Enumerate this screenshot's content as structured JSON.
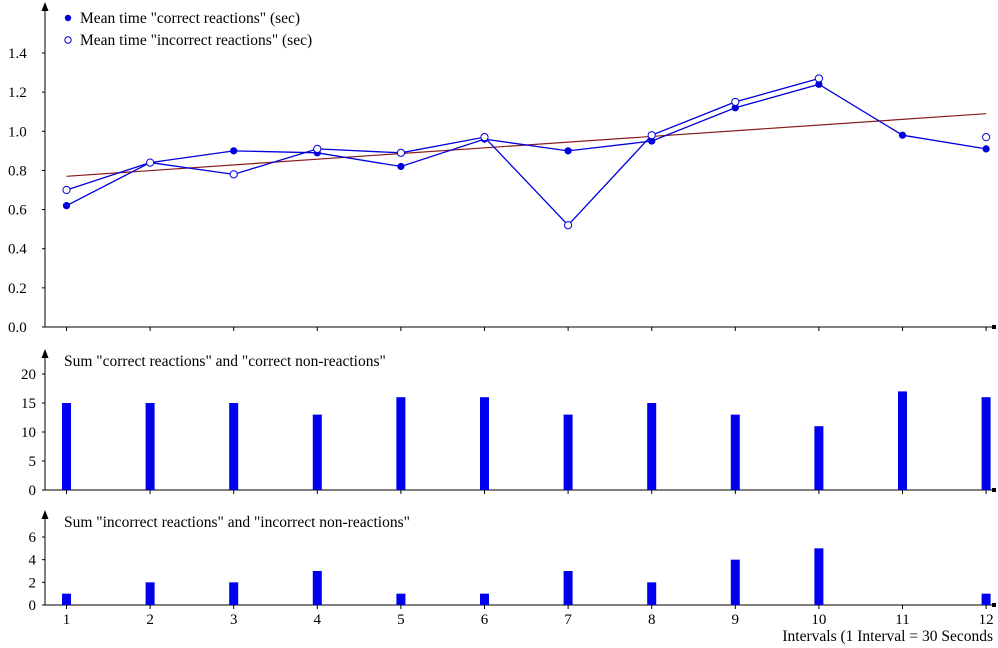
{
  "chart_data": [
    {
      "type": "line",
      "x": [
        1,
        2,
        3,
        4,
        5,
        6,
        7,
        8,
        9,
        10,
        11,
        12
      ],
      "ylim": [
        0.0,
        1.4
      ],
      "yticks": [
        "0.0",
        "0.2",
        "0.4",
        "0.6",
        "0.8",
        "1.0",
        "1.2",
        "1.4"
      ],
      "legend_position": "top-left",
      "series": [
        {
          "name": "Mean time \"correct reactions\" (sec)",
          "marker": "filled-circle",
          "color": "#0000dd",
          "values": [
            0.62,
            0.84,
            0.9,
            0.89,
            0.82,
            0.96,
            0.9,
            0.95,
            1.12,
            1.24,
            0.98,
            0.91
          ]
        },
        {
          "name": "Mean time \"incorrect reactions\" (sec)",
          "marker": "open-circle",
          "color": "#0000dd",
          "values": [
            0.7,
            0.84,
            0.78,
            0.91,
            0.89,
            0.97,
            0.52,
            0.98,
            1.15,
            1.27,
            null,
            0.97
          ]
        }
      ],
      "trendline": {
        "color": "#8b1a1a",
        "start": 0.77,
        "end": 1.09
      }
    },
    {
      "type": "bar",
      "title": "Sum \"correct reactions\" and \"correct non-reactions\"",
      "x": [
        1,
        2,
        3,
        4,
        5,
        6,
        7,
        8,
        9,
        10,
        11,
        12
      ],
      "values": [
        15,
        15,
        15,
        13,
        16,
        16,
        13,
        15,
        13,
        11,
        17,
        16
      ],
      "ylim": [
        0,
        20
      ],
      "yticks": [
        "0",
        "5",
        "10",
        "15",
        "20"
      ],
      "color": "#0000ee"
    },
    {
      "type": "bar",
      "title": "Sum \"incorrect reactions\" and \"incorrect non-reactions\"",
      "x": [
        1,
        2,
        3,
        4,
        5,
        6,
        7,
        8,
        9,
        10,
        11,
        12
      ],
      "values": [
        1,
        2,
        2,
        3,
        1,
        1,
        3,
        2,
        4,
        5,
        0,
        1
      ],
      "ylim": [
        0,
        6
      ],
      "yticks": [
        "0",
        "2",
        "4",
        "6"
      ],
      "xticks": [
        "1",
        "2",
        "3",
        "4",
        "5",
        "6",
        "7",
        "8",
        "9",
        "10",
        "11",
        "12"
      ],
      "xlabel": "Intervals (1 Interval = 30 Seconds",
      "color": "#0000ee"
    }
  ]
}
